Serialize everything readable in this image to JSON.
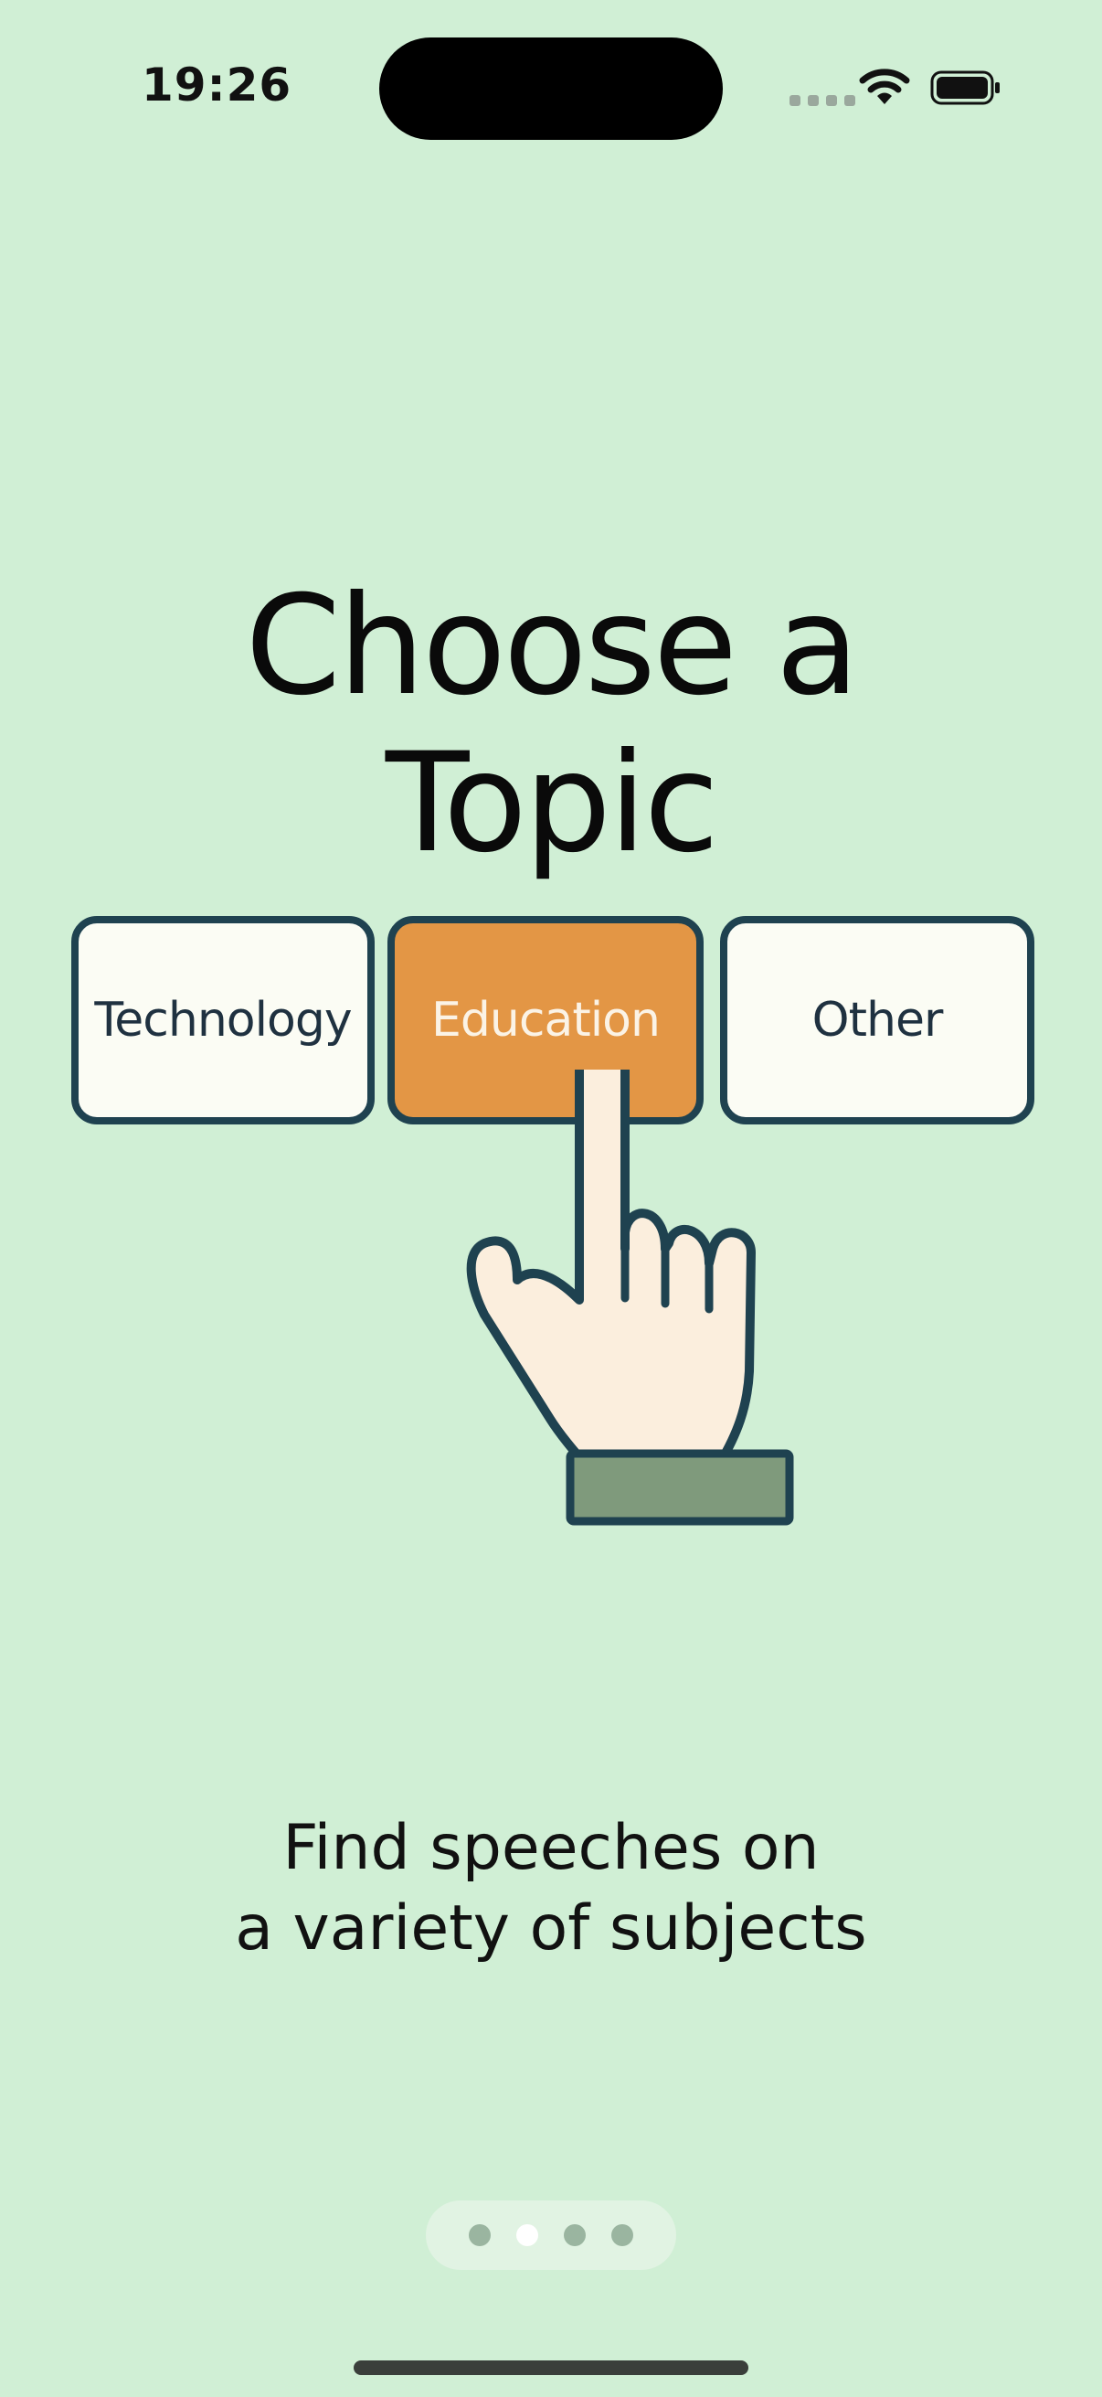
{
  "status_bar": {
    "time": "19:26",
    "icons": [
      "cellular-signal-icon",
      "wifi-icon",
      "battery-icon"
    ]
  },
  "onboarding": {
    "title": "Choose a Topic",
    "title_line_1": "Choose a",
    "title_line_2": "Topic",
    "subtitle_line_1": "Find speeches on",
    "subtitle_line_2": "a variety of subjects",
    "illustration": {
      "topics": [
        {
          "label": "Technology",
          "selected": false
        },
        {
          "label": "Education",
          "selected": true
        },
        {
          "label": "Other",
          "selected": false
        }
      ],
      "icon": "pointing-hand-icon"
    }
  },
  "pager": {
    "page_count": 4,
    "current_page": 2
  },
  "colors": {
    "background": "#d0efd5",
    "selected_topic": "#e39645",
    "outline": "#1f4250",
    "sleeve": "#7f9a7c"
  }
}
